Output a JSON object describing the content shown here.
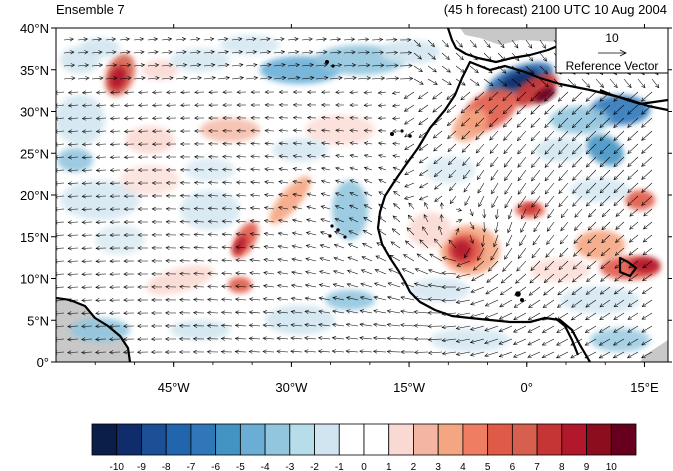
{
  "title_left": "Ensemble 7",
  "title_right": "(45 h forecast) 2100 UTC 10 Aug 2004",
  "reference_vector": {
    "value": "10",
    "label": "Reference Vector"
  },
  "lat_labels": [
    "40°N",
    "35°N",
    "30°N",
    "25°N",
    "20°N",
    "15°N",
    "10°N",
    "5°N",
    "0°"
  ],
  "lon_labels": [
    {
      "label": "45°W",
      "lon": -45
    },
    {
      "label": "30°W",
      "lon": -30
    },
    {
      "label": "15°W",
      "lon": -15
    },
    {
      "label": "0°",
      "lon": 0
    },
    {
      "label": "15°E",
      "lon": 15
    }
  ],
  "colorbar": {
    "labels": [
      "-10",
      "-9",
      "-8",
      "-7",
      "-6",
      "-5",
      "-4",
      "-3",
      "-2",
      "-1",
      "0",
      "1",
      "2",
      "3",
      "4",
      "5",
      "6",
      "7",
      "8",
      "9",
      "10"
    ],
    "colors": [
      "#0b1e4a",
      "#0f2d6b",
      "#1b4f96",
      "#2166ac",
      "#2f77b9",
      "#4393c3",
      "#6aaed6",
      "#92c5de",
      "#b7dcea",
      "#d1e5f0",
      "#ffffff",
      "#ffffff",
      "#fbd9d3",
      "#f4b5a3",
      "#f4a582",
      "#ee7d62",
      "#e05a48",
      "#d6604d",
      "#c53535",
      "#b2182b",
      "#8c0e1e",
      "#67001f"
    ]
  },
  "colors": {
    "land_gray": "#c8c8c8",
    "coast": "#000000"
  }
}
